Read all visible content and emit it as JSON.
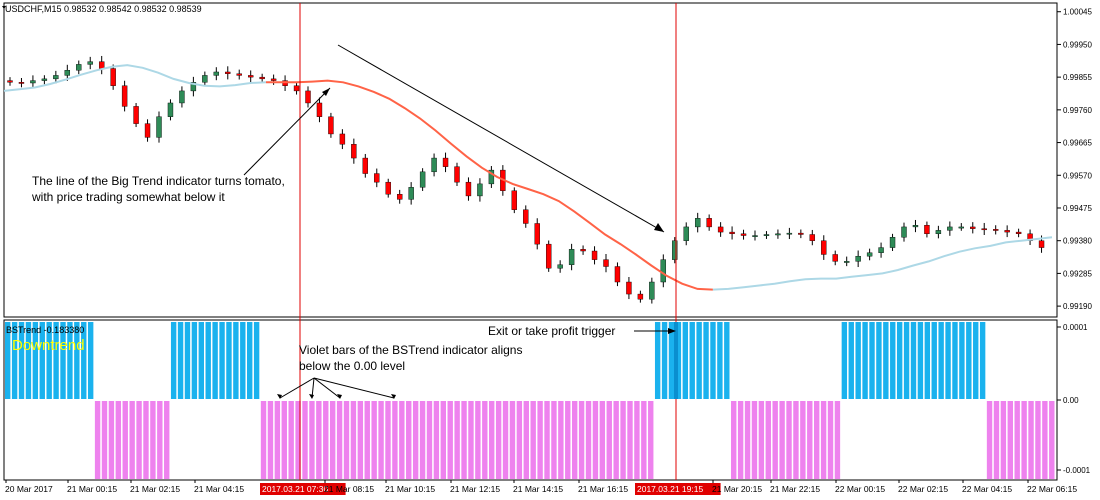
{
  "chart_header": {
    "ohlc_text": "USDCHF,M15  0.98532 0.98542 0.98532 0.98539"
  },
  "indicator_header": {
    "name_text": "BSTrend -0.183380",
    "status_text": "Downtrend"
  },
  "annotations": {
    "big_trend_note": "The line of the Big Trend indicator turns tomato, with price trading somewhat below it",
    "violet_bars_note": "Violet bars of the BSTrend indicator aligns below the 0.00 level",
    "exit_note": "Exit or take profit trigger"
  },
  "colors": {
    "bull_candle": "#2e8b57",
    "bear_candle": "#ff0000",
    "big_trend_up": "#add8e6",
    "big_trend_down": "#ff6347",
    "bstrend_up": "#1ab2ee",
    "bstrend_down": "#ee82ee",
    "marker_line": "#e00000",
    "date_highlight": "#e00000"
  },
  "chart_data": [
    {
      "type": "candlestick",
      "title": "USDCHF,M15",
      "y_ticks": [
        "1.00045",
        "0.99950",
        "0.99855",
        "0.99760",
        "0.99665",
        "0.99570",
        "0.99475",
        "0.99380",
        "0.99285",
        "0.99190"
      ],
      "ylim": [
        0.9917,
        1.0005
      ],
      "x_ticks": [
        "20 Mar 2017",
        "21 Mar 00:15",
        "21 Mar 02:15",
        "21 Mar 04:15",
        "2017.03.21 07:30",
        "21 Mar 08:15",
        "21 Mar 10:15",
        "21 Mar 12:15",
        "21 Mar 14:15",
        "21 Mar 16:15",
        "2017.03.21 19:15",
        "21 Mar 20:15",
        "21 Mar 22:15",
        "22 Mar 00:15",
        "22 Mar 02:15",
        "22 Mar 04:15",
        "22 Mar 06:15"
      ],
      "highlighted_ticks": [
        "2017.03.21 07:30",
        "2017.03.21 19:15"
      ],
      "vertical_markers": [
        "2017.03.21 07:30",
        "2017.03.21 19:15"
      ],
      "close_profile": [
        0.9984,
        0.99838,
        0.99845,
        0.9985,
        0.9986,
        0.99875,
        0.99892,
        0.999,
        0.9988,
        0.9983,
        0.9977,
        0.9972,
        0.9968,
        0.9974,
        0.9978,
        0.99815,
        0.9984,
        0.9986,
        0.9987,
        0.99865,
        0.9986,
        0.99855,
        0.9985,
        0.99845,
        0.9983,
        0.99815,
        0.9978,
        0.9974,
        0.9969,
        0.9966,
        0.9962,
        0.99575,
        0.9955,
        0.99515,
        0.995,
        0.99535,
        0.9958,
        0.9962,
        0.99595,
        0.9955,
        0.9951,
        0.99545,
        0.99585,
        0.99525,
        0.9947,
        0.9943,
        0.9937,
        0.993,
        0.9931,
        0.99355,
        0.9935,
        0.99325,
        0.99305,
        0.9926,
        0.99225,
        0.9921,
        0.9926,
        0.99325,
        0.9938,
        0.9942,
        0.99445,
        0.9942,
        0.99405,
        0.994,
        0.99395,
        0.99395,
        0.99398,
        0.994,
        0.99402,
        0.99398,
        0.9938,
        0.9934,
        0.9932,
        0.9932,
        0.99335,
        0.99345,
        0.9936,
        0.9939,
        0.9942,
        0.99425,
        0.994,
        0.9941,
        0.9942,
        0.9942,
        0.99415,
        0.99413,
        0.9941,
        0.99405,
        0.994,
        0.9938,
        0.9936
      ],
      "big_trend_profile": [
        0.99815,
        0.9982,
        0.99825,
        0.99835,
        0.99848,
        0.99862,
        0.99875,
        0.99885,
        0.9989,
        0.99882,
        0.99868,
        0.9985,
        0.99838,
        0.9983,
        0.99828,
        0.99832,
        0.99838,
        0.9984,
        0.9984,
        0.9984,
        0.99842,
        0.99845,
        0.9984,
        0.99828,
        0.99812,
        0.99792,
        0.99765,
        0.99735,
        0.997,
        0.99662,
        0.99625,
        0.99592,
        0.99565,
        0.99545,
        0.9953,
        0.99515,
        0.99495,
        0.99465,
        0.99432,
        0.99398,
        0.9937,
        0.9934,
        0.99308,
        0.99278,
        0.99255,
        0.9924,
        0.99238,
        0.9924,
        0.99245,
        0.9925,
        0.99255,
        0.99262,
        0.99268,
        0.9927,
        0.9927,
        0.99275,
        0.9928,
        0.99285,
        0.99295,
        0.99308,
        0.9932,
        0.99335,
        0.99348,
        0.99358,
        0.99365,
        0.99375,
        0.9938,
        0.99385,
        0.9939
      ],
      "big_trend_down_range": [
        "2017.03.21 07:30",
        "21 Mar 20:15"
      ]
    },
    {
      "type": "bar",
      "title": "BSTrend -0.183380",
      "y_ticks": [
        "0.0001",
        "0.00",
        "-0.0001"
      ],
      "ylim": [
        -0.0001,
        0.0001
      ],
      "bar_count": 152,
      "segments": [
        {
          "state": "up",
          "bars": 13
        },
        {
          "state": "down",
          "bars": 11
        },
        {
          "state": "up",
          "bars": 13
        },
        {
          "state": "down",
          "bars": 57
        },
        {
          "state": "up",
          "bars": 11
        },
        {
          "state": "down",
          "bars": 16
        },
        {
          "state": "up",
          "bars": 21
        },
        {
          "state": "down",
          "bars": 10
        }
      ]
    }
  ]
}
